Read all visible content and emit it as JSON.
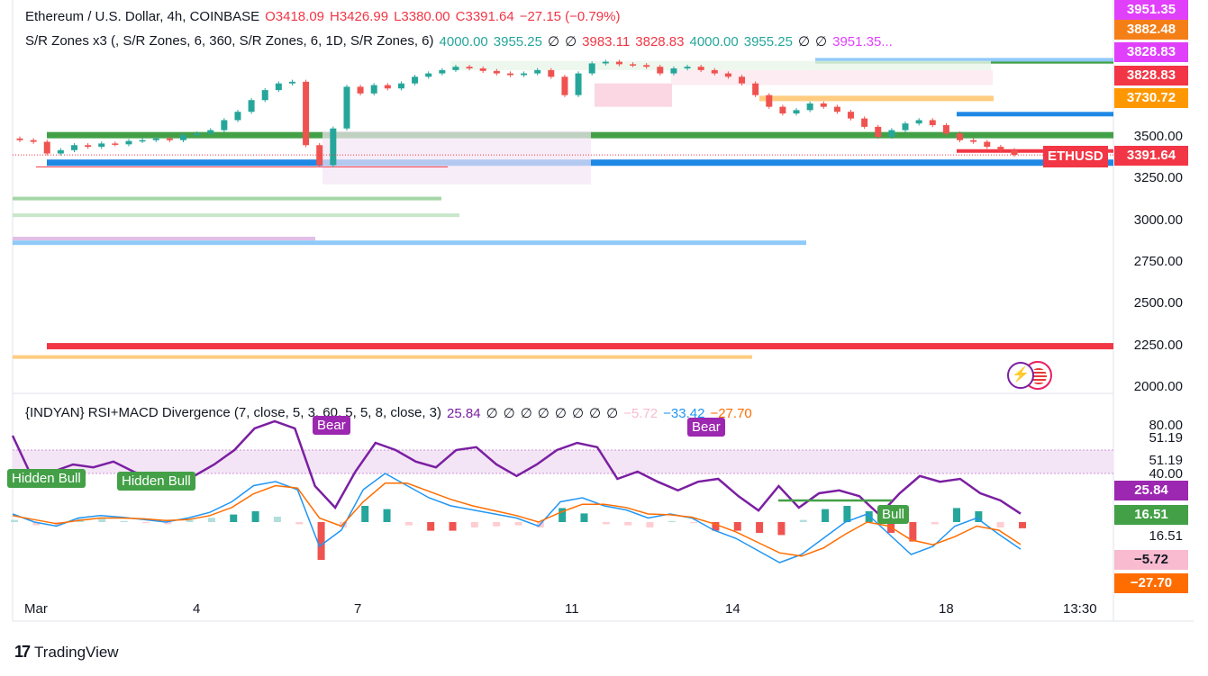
{
  "header": {
    "symbol": "Ethereum / U.S. Dollar, 4h, COINBASE",
    "open": "O3418.09",
    "high": "H3426.99",
    "low": "L3380.00",
    "close": "C3391.64",
    "change": "−27.15 (−0.79%)"
  },
  "sr_indicator": {
    "name": "S/R Zones x3 (, S/R Zones, 6, 360, S/R Zones, 6, 1D, S/R Zones, 6)",
    "values": [
      "4000.00",
      "3955.25",
      "∅",
      "∅",
      "3983.11",
      "3828.83",
      "4000.00",
      "3955.25",
      "∅",
      "∅",
      "3951.35..."
    ]
  },
  "rsi_indicator": {
    "name": "{INDYAN} RSI+MACD Divergence (7, close, 5, 3, 60, 5, 5, 8, close, 3)",
    "values": [
      "25.84",
      "∅",
      "∅",
      "∅",
      "∅",
      "∅",
      "∅",
      "∅",
      "∅",
      "−5.72",
      "−33.42",
      "−27.70"
    ]
  },
  "price_axis": [
    "3500.00",
    "3250.00",
    "3000.00",
    "2750.00",
    "2500.00",
    "2250.00",
    "2000.00"
  ],
  "price_badges": [
    {
      "label": "3951.35",
      "color": "#e040fb"
    },
    {
      "label": "3882.48",
      "color": "#f57f17"
    },
    {
      "label": "3828.83",
      "color": "#e040fb"
    },
    {
      "label": "3828.83",
      "color": "#f23645"
    },
    {
      "label": "3730.72",
      "color": "#ff9800"
    },
    {
      "label": "3391.64",
      "color": "#f23645"
    }
  ],
  "symbol_tag": "ETHUSD",
  "osc_axis": [
    "80.00",
    "51.19",
    "51.19",
    "40.00",
    "16.51"
  ],
  "osc_badges": [
    {
      "label": "25.84",
      "color": "#9c27b0"
    },
    {
      "label": "16.51",
      "color": "#43a047"
    },
    {
      "label": "−5.72",
      "color": "#f8bbd0"
    },
    {
      "label": "−27.70",
      "color": "#ff6d00"
    }
  ],
  "divergence_tags": [
    {
      "label": "Hidden Bull",
      "color": "#43a047"
    },
    {
      "label": "Hidden Bull",
      "color": "#43a047"
    },
    {
      "label": "Bear",
      "color": "#9c27b0"
    },
    {
      "label": "Bear",
      "color": "#9c27b0"
    },
    {
      "label": "Bull",
      "color": "#43a047"
    }
  ],
  "time_axis": [
    "Mar",
    "4",
    "7",
    "11",
    "14",
    "18",
    "13:30"
  ],
  "branding": "TradingView",
  "colors": {
    "up": "#26a69a",
    "down": "#ef5350",
    "rsi": "#7b1fa2",
    "macd": "#2196f3",
    "signal": "#ff6d00"
  },
  "chart_data": {
    "type": "candlestick",
    "interval": "4h",
    "ylim": [
      2000,
      4000
    ],
    "close_path": [
      3480,
      3470,
      3400,
      3420,
      3450,
      3440,
      3460,
      3455,
      3475,
      3480,
      3490,
      3480,
      3510,
      3520,
      3540,
      3600,
      3650,
      3720,
      3780,
      3820,
      3830,
      3450,
      3330,
      3550,
      3800,
      3760,
      3810,
      3790,
      3820,
      3860,
      3880,
      3900,
      3920,
      3910,
      3895,
      3880,
      3870,
      3880,
      3900,
      3860,
      3750,
      3880,
      3940,
      3950,
      3935,
      3930,
      3920,
      3880,
      3910,
      3920,
      3900,
      3880,
      3860,
      3820,
      3750,
      3680,
      3640,
      3660,
      3700,
      3680,
      3650,
      3610,
      3560,
      3500,
      3540,
      3580,
      3600,
      3570,
      3520,
      3480,
      3470,
      3440,
      3420,
      3391.64
    ],
    "rsi": [
      80,
      50,
      55,
      60,
      58,
      62,
      55,
      50,
      48,
      52,
      60,
      70,
      85,
      90,
      85,
      45,
      30,
      55,
      75,
      70,
      62,
      58,
      70,
      72,
      60,
      52,
      60,
      70,
      75,
      72,
      50,
      55,
      48,
      42,
      48,
      50,
      38,
      28,
      45,
      30,
      40,
      42,
      38,
      25,
      40,
      52,
      48,
      50,
      40,
      35,
      25.84
    ],
    "macd": [
      10,
      0,
      -5,
      5,
      8,
      6,
      3,
      0,
      5,
      12,
      25,
      45,
      50,
      40,
      -30,
      -10,
      40,
      60,
      45,
      30,
      20,
      15,
      10,
      5,
      -5,
      25,
      30,
      20,
      15,
      5,
      10,
      5,
      -10,
      -20,
      -35,
      -50,
      -40,
      -20,
      0,
      10,
      -15,
      -40,
      -30,
      -5,
      5,
      -15,
      -33.42
    ],
    "signal": [
      8,
      3,
      -2,
      2,
      5,
      5,
      4,
      2,
      3,
      8,
      18,
      35,
      45,
      42,
      5,
      -5,
      25,
      48,
      48,
      38,
      28,
      20,
      14,
      8,
      0,
      12,
      22,
      22,
      18,
      10,
      9,
      6,
      -2,
      -12,
      -25,
      -38,
      -42,
      -32,
      -15,
      0,
      -5,
      -22,
      -28,
      -18,
      -5,
      -10,
      -27.7
    ]
  }
}
